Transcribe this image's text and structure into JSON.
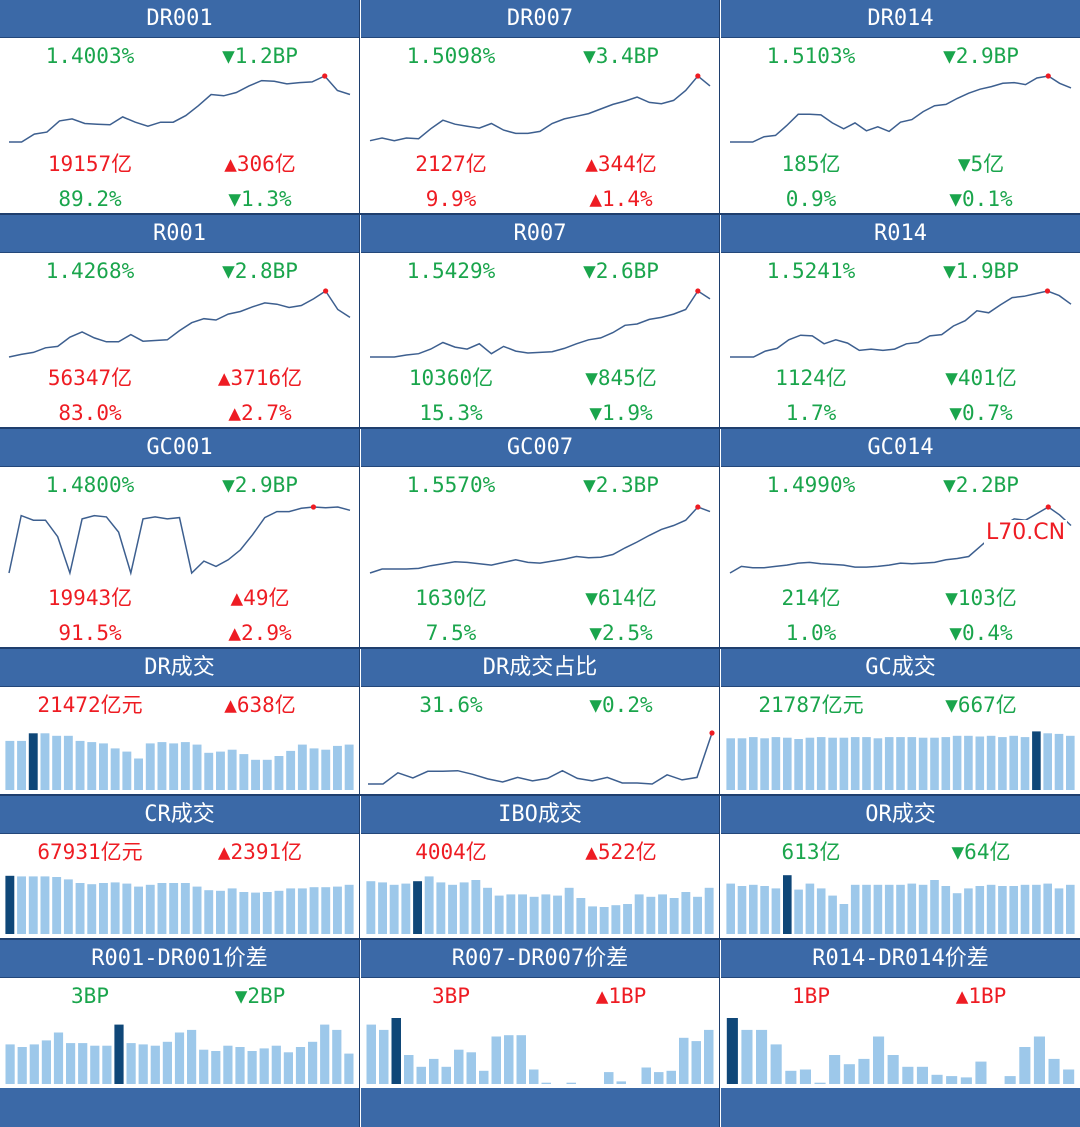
{
  "colors": {
    "header_bg": "#3b69a7",
    "up": "#ee1c23",
    "down": "#1aa54c",
    "line": "#3d5f8f",
    "bar": "#9dc8ea",
    "bar_highlight": "#0f4778",
    "last_point": "#ee1c23"
  },
  "watermark": "L70.CN",
  "panels": [
    {
      "title": "DR001",
      "rate": "1.4003%",
      "rate_change": "▼1.2BP",
      "volume": "19157亿",
      "volume_change": "▲306亿",
      "share": "89.2%",
      "share_change": "▼1.3%"
    },
    {
      "title": "DR007",
      "rate": "1.5098%",
      "rate_change": "▼3.4BP",
      "volume": "2127亿",
      "volume_change": "▲344亿",
      "share": "9.9%",
      "share_change": "▲1.4%"
    },
    {
      "title": "DR014",
      "rate": "1.5103%",
      "rate_change": "▼2.9BP",
      "volume": "185亿",
      "volume_change": "▼5亿",
      "share": "0.9%",
      "share_change": "▼0.1%"
    },
    {
      "title": "R001",
      "rate": "1.4268%",
      "rate_change": "▼2.8BP",
      "volume": "56347亿",
      "volume_change": "▲3716亿",
      "share": "83.0%",
      "share_change": "▲2.7%"
    },
    {
      "title": "R007",
      "rate": "1.5429%",
      "rate_change": "▼2.6BP",
      "volume": "10360亿",
      "volume_change": "▼845亿",
      "share": "15.3%",
      "share_change": "▼1.9%"
    },
    {
      "title": "R014",
      "rate": "1.5241%",
      "rate_change": "▼1.9BP",
      "volume": "1124亿",
      "volume_change": "▼401亿",
      "share": "1.7%",
      "share_change": "▼0.7%"
    },
    {
      "title": "GC001",
      "rate": "1.4800%",
      "rate_change": "▼2.9BP",
      "volume": "19943亿",
      "volume_change": "▲49亿",
      "share": "91.5%",
      "share_change": "▲2.9%"
    },
    {
      "title": "GC007",
      "rate": "1.5570%",
      "rate_change": "▼2.3BP",
      "volume": "1630亿",
      "volume_change": "▼614亿",
      "share": "7.5%",
      "share_change": "▼2.5%"
    },
    {
      "title": "GC014",
      "rate": "1.4990%",
      "rate_change": "▼2.2BP",
      "volume": "214亿",
      "volume_change": "▼103亿",
      "share": "1.0%",
      "share_change": "▼0.4%"
    },
    {
      "title": "DR成交",
      "value": "21472亿元",
      "change": "▲638亿"
    },
    {
      "title": "DR成交占比",
      "value": "31.6%",
      "change": "▼0.2%"
    },
    {
      "title": "GC成交",
      "value": "21787亿元",
      "change": "▼667亿"
    },
    {
      "title": "CR成交",
      "value": "67931亿元",
      "change": "▲2391亿"
    },
    {
      "title": "IBO成交",
      "value": "4004亿",
      "change": "▲522亿"
    },
    {
      "title": "OR成交",
      "value": "613亿",
      "change": "▼64亿"
    },
    {
      "title": "R001-DR001价差",
      "value": "3BP",
      "change": "▼2BP"
    },
    {
      "title": "R007-DR007价差",
      "value": "3BP",
      "change": "▲1BP"
    },
    {
      "title": "R014-DR014价差",
      "value": "1BP",
      "change": "▲1BP"
    }
  ],
  "chart_data": [
    {
      "type": "line",
      "title": "DR001",
      "values": [
        0.0,
        0.0,
        0.12,
        0.15,
        0.32,
        0.35,
        0.28,
        0.27,
        0.26,
        0.38,
        0.3,
        0.24,
        0.3,
        0.3,
        0.4,
        0.55,
        0.72,
        0.7,
        0.75,
        0.85,
        0.93,
        0.92,
        0.88,
        0.9,
        0.91,
        1.0,
        0.78,
        0.72
      ],
      "highlight_index": 25
    },
    {
      "type": "line",
      "title": "DR007",
      "values": [
        0.02,
        0.06,
        0.02,
        0.06,
        0.05,
        0.2,
        0.33,
        0.27,
        0.24,
        0.21,
        0.28,
        0.18,
        0.13,
        0.13,
        0.16,
        0.28,
        0.35,
        0.39,
        0.43,
        0.5,
        0.57,
        0.62,
        0.68,
        0.6,
        0.58,
        0.63,
        0.78,
        1.0,
        0.85
      ],
      "highlight_index": 27
    },
    {
      "type": "line",
      "title": "DR014",
      "values": [
        0.0,
        0.0,
        0.0,
        0.08,
        0.1,
        0.25,
        0.42,
        0.42,
        0.41,
        0.29,
        0.2,
        0.29,
        0.17,
        0.23,
        0.16,
        0.3,
        0.34,
        0.46,
        0.55,
        0.57,
        0.66,
        0.74,
        0.8,
        0.84,
        0.89,
        0.9,
        0.87,
        0.97,
        1.0,
        0.89,
        0.82
      ],
      "highlight_index": 28
    },
    {
      "type": "line",
      "title": "R001",
      "values": [
        0.0,
        0.04,
        0.07,
        0.14,
        0.16,
        0.3,
        0.38,
        0.29,
        0.23,
        0.23,
        0.34,
        0.24,
        0.25,
        0.26,
        0.4,
        0.52,
        0.58,
        0.56,
        0.65,
        0.69,
        0.76,
        0.82,
        0.8,
        0.75,
        0.78,
        0.88,
        1.0,
        0.72,
        0.6
      ],
      "highlight_index": 26
    },
    {
      "type": "line",
      "title": "R007",
      "values": [
        0.0,
        0.0,
        0.0,
        0.03,
        0.05,
        0.12,
        0.22,
        0.15,
        0.12,
        0.2,
        0.05,
        0.16,
        0.09,
        0.06,
        0.07,
        0.08,
        0.13,
        0.2,
        0.26,
        0.29,
        0.37,
        0.48,
        0.5,
        0.57,
        0.6,
        0.65,
        0.72,
        1.0,
        0.88
      ],
      "highlight_index": 27
    },
    {
      "type": "line",
      "title": "R014",
      "values": [
        0.0,
        0.0,
        0.0,
        0.09,
        0.13,
        0.26,
        0.33,
        0.32,
        0.2,
        0.26,
        0.21,
        0.1,
        0.12,
        0.1,
        0.12,
        0.2,
        0.22,
        0.32,
        0.34,
        0.47,
        0.55,
        0.7,
        0.67,
        0.79,
        0.9,
        0.92,
        0.96,
        1.0,
        0.93,
        0.8
      ],
      "highlight_index": 27
    },
    {
      "type": "line",
      "title": "GC001",
      "values": [
        0.0,
        0.87,
        0.8,
        0.8,
        0.55,
        0.0,
        0.82,
        0.87,
        0.85,
        0.62,
        0.0,
        0.82,
        0.85,
        0.82,
        0.84,
        0.0,
        0.18,
        0.1,
        0.2,
        0.35,
        0.58,
        0.84,
        0.93,
        0.93,
        0.98,
        1.0,
        0.99,
        1.0,
        0.95
      ],
      "highlight_index": 25
    },
    {
      "type": "line",
      "title": "GC007",
      "values": [
        0.0,
        0.06,
        0.06,
        0.06,
        0.07,
        0.11,
        0.14,
        0.17,
        0.16,
        0.14,
        0.12,
        0.16,
        0.2,
        0.16,
        0.15,
        0.18,
        0.21,
        0.25,
        0.23,
        0.24,
        0.28,
        0.38,
        0.47,
        0.57,
        0.66,
        0.72,
        0.8,
        1.0,
        0.93
      ],
      "highlight_index": 27
    },
    {
      "type": "line",
      "title": "GC014",
      "values": [
        0.0,
        0.1,
        0.08,
        0.08,
        0.1,
        0.12,
        0.15,
        0.16,
        0.14,
        0.13,
        0.12,
        0.09,
        0.09,
        0.1,
        0.12,
        0.15,
        0.14,
        0.15,
        0.16,
        0.2,
        0.22,
        0.25,
        0.4,
        0.55,
        0.72,
        0.82,
        0.8,
        0.9,
        1.0,
        0.88,
        0.72
      ],
      "highlight_index": 28
    },
    {
      "type": "bar",
      "title": "DR成交",
      "values": [
        0.78,
        0.78,
        0.9,
        0.9,
        0.86,
        0.86,
        0.78,
        0.76,
        0.74,
        0.66,
        0.61,
        0.5,
        0.74,
        0.76,
        0.74,
        0.76,
        0.72,
        0.59,
        0.61,
        0.64,
        0.57,
        0.48,
        0.48,
        0.54,
        0.62,
        0.72,
        0.66,
        0.64,
        0.7,
        0.72
      ],
      "highlight_index": 2
    },
    {
      "type": "line",
      "title": "DR成交占比",
      "values": [
        0.0,
        0.0,
        0.22,
        0.12,
        0.25,
        0.25,
        0.26,
        0.19,
        0.1,
        0.04,
        0.13,
        0.06,
        0.11,
        0.26,
        0.11,
        0.06,
        0.13,
        0.02,
        0.02,
        0.0,
        0.18,
        0.08,
        0.13,
        1.0
      ],
      "highlight_index": 23
    },
    {
      "type": "bar",
      "title": "GC成交",
      "values": [
        0.82,
        0.82,
        0.84,
        0.82,
        0.84,
        0.83,
        0.81,
        0.83,
        0.84,
        0.83,
        0.83,
        0.84,
        0.84,
        0.82,
        0.84,
        0.84,
        0.84,
        0.83,
        0.83,
        0.84,
        0.86,
        0.86,
        0.85,
        0.86,
        0.84,
        0.86,
        0.84,
        0.93,
        0.9,
        0.89,
        0.86
      ],
      "highlight_index": 27
    },
    {
      "type": "bar",
      "title": "CR成交",
      "values": [
        0.97,
        0.96,
        0.96,
        0.96,
        0.95,
        0.91,
        0.85,
        0.83,
        0.85,
        0.86,
        0.84,
        0.79,
        0.82,
        0.85,
        0.85,
        0.85,
        0.79,
        0.73,
        0.72,
        0.76,
        0.7,
        0.69,
        0.7,
        0.72,
        0.76,
        0.76,
        0.78,
        0.78,
        0.79,
        0.82
      ],
      "highlight_index": 0
    },
    {
      "type": "bar",
      "title": "IBO成交",
      "values": [
        0.88,
        0.86,
        0.82,
        0.84,
        0.88,
        0.96,
        0.86,
        0.82,
        0.86,
        0.9,
        0.77,
        0.64,
        0.66,
        0.66,
        0.62,
        0.66,
        0.64,
        0.77,
        0.6,
        0.46,
        0.45,
        0.48,
        0.5,
        0.66,
        0.62,
        0.66,
        0.6,
        0.7,
        0.62,
        0.77
      ],
      "highlight_index": 4
    },
    {
      "type": "bar",
      "title": "OR成交",
      "values": [
        0.84,
        0.8,
        0.82,
        0.8,
        0.76,
        0.98,
        0.74,
        0.84,
        0.76,
        0.64,
        0.5,
        0.82,
        0.82,
        0.82,
        0.82,
        0.82,
        0.84,
        0.82,
        0.9,
        0.8,
        0.68,
        0.76,
        0.8,
        0.82,
        0.8,
        0.8,
        0.82,
        0.82,
        0.84,
        0.76,
        0.82
      ],
      "highlight_index": 5
    },
    {
      "type": "bar",
      "title": "R001-DR001价差",
      "values": [
        0.6,
        0.56,
        0.6,
        0.66,
        0.78,
        0.62,
        0.62,
        0.58,
        0.58,
        0.9,
        0.62,
        0.6,
        0.58,
        0.64,
        0.78,
        0.82,
        0.52,
        0.5,
        0.58,
        0.56,
        0.5,
        0.54,
        0.58,
        0.48,
        0.56,
        0.64,
        0.9,
        0.82,
        0.46
      ],
      "highlight_index": 9
    },
    {
      "type": "bar",
      "title": "R007-DR007价差",
      "values": [
        0.9,
        0.82,
        1.0,
        0.44,
        0.26,
        0.38,
        0.26,
        0.52,
        0.48,
        0.2,
        0.72,
        0.74,
        0.74,
        0.22,
        0.02,
        0,
        0.02,
        0,
        0,
        0.18,
        0.04,
        0,
        0.25,
        0.18,
        0.2,
        0.7,
        0.65,
        0.82
      ],
      "highlight_index": 2
    },
    {
      "type": "bar",
      "title": "R014-DR014价差",
      "values": [
        1.0,
        0.82,
        0.82,
        0.6,
        0.2,
        0.22,
        0.02,
        0.44,
        0.3,
        0.38,
        0.72,
        0.44,
        0.26,
        0.26,
        0.14,
        0.12,
        0.1,
        0.34,
        0,
        0.12,
        0.56,
        0.72,
        0.38,
        0.22
      ],
      "highlight_index": 0
    }
  ]
}
